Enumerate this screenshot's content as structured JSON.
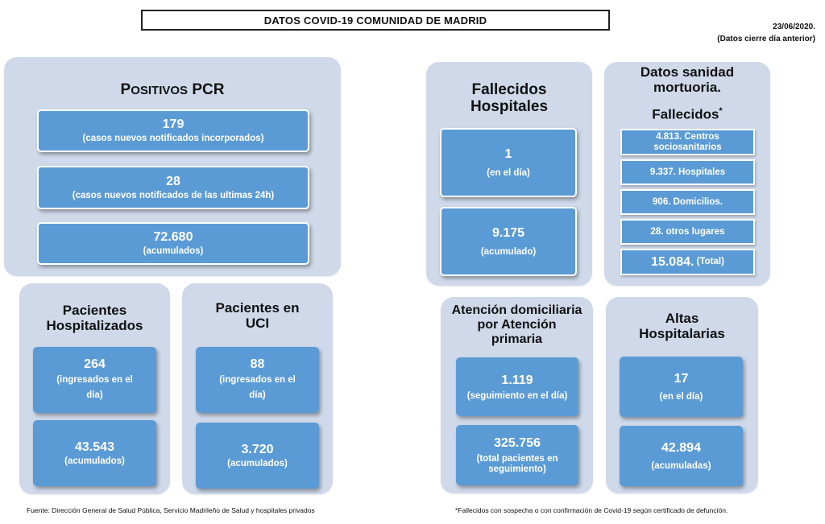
{
  "header": {
    "title": "DATOS COVID-19 COMUNIDAD DE MADRID",
    "date": "23/06/2020.",
    "date_note": "(Datos cierre día anterior)"
  },
  "positivos_pcr": {
    "title_initial": "P",
    "title_rest": "OSITIVOS",
    "title_suffix": " PCR",
    "tiles": [
      {
        "value": "179",
        "label": "(casos nuevos notificados incorporados)"
      },
      {
        "value": "28",
        "label": "(casos nuevos notificados de las ultimas 24h)"
      },
      {
        "value": "72.680",
        "label": "(acumulados)"
      }
    ]
  },
  "hospitalizados": {
    "title": "Pacientes Hospitalizados",
    "tiles": [
      {
        "value": "264",
        "label": "(ingresados en el día)"
      },
      {
        "value": "43.543",
        "label": "(acumulados)"
      }
    ]
  },
  "uci": {
    "title": "Pacientes en UCI",
    "tiles": [
      {
        "value": "88",
        "label": "(ingresados en el día)"
      },
      {
        "value": "3.720",
        "label": "(acumulados)"
      }
    ]
  },
  "fallecidos_hospitales": {
    "title": "Fallecidos Hospitales",
    "tiles": [
      {
        "value": "1",
        "label": "(en el día)"
      },
      {
        "value": "9.175",
        "label": "(acumulado)"
      }
    ]
  },
  "sanidad_mortuoria": {
    "title": "Datos sanidad mortuoria.",
    "subtitle": "Fallecidos",
    "asterisk": "*",
    "items": [
      "4.813. Centros sociosanitarios",
      "9.337. Hospitales",
      "906. Domicilios.",
      "28. otros lugares"
    ],
    "total_value": "15.084.",
    "total_label": "(Total)"
  },
  "atencion_domiciliaria": {
    "title": "Atención domiciliaria por Atención primaria",
    "tiles": [
      {
        "value": "1.119",
        "label": "(seguimiento en el día)"
      },
      {
        "value": "325.756",
        "label": "(total pacientes en seguimiento)"
      }
    ]
  },
  "altas": {
    "title": "Altas Hospitalarias",
    "tiles": [
      {
        "value": "17",
        "label": "(en el día)"
      },
      {
        "value": "42.894",
        "label": "(acumuladas)"
      }
    ]
  },
  "footer": {
    "source": "Fuente: Dirección General de Salud Pública, Servicio Madrileño de Salud y hospitales privados",
    "note": "*Fallecidos con sospecha o con confirmación de Covid-19 según certificado de defunción."
  }
}
